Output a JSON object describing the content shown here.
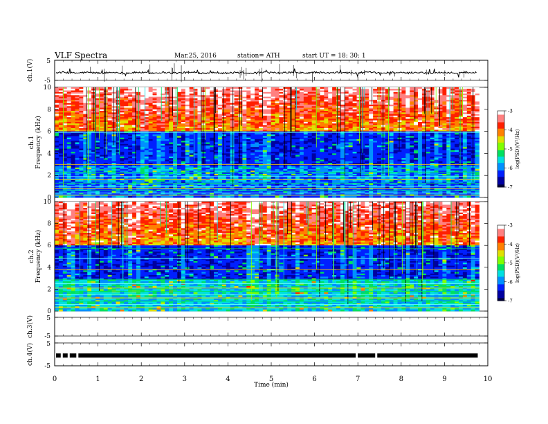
{
  "header": {
    "title": "VLF  Spectra",
    "date": "Mar.25, 2016",
    "station": "station= ATH",
    "start": "start  UT =   18: 30: 1"
  },
  "colors": {
    "colormap": [
      "#000040",
      "#0000a0",
      "#0020ff",
      "#0090ff",
      "#00e0e0",
      "#00e060",
      "#80ff00",
      "#e0e000",
      "#ff8000",
      "#ff2000",
      "#ff8080",
      "#ffffff"
    ],
    "trace": "#000000",
    "spectrogram_floor": "#000055"
  },
  "chart_data": [
    {
      "type": "line",
      "panel": "ch1-waveform",
      "ylabel": "ch.1(V)",
      "ylim": [
        -5,
        5
      ],
      "yticks": [
        "5",
        "-5"
      ],
      "baseline": -1.2,
      "xlim": [
        0,
        10
      ]
    },
    {
      "type": "heatmap",
      "panel": "ch1-spectrogram",
      "ylabel": "ch.1",
      "ylabel2": "Frequency  (kHz)",
      "ylim": [
        0,
        10
      ],
      "yticks": [
        "0",
        "2",
        "4",
        "6",
        "8",
        "10"
      ],
      "xlim": [
        0,
        9.8
      ],
      "colorbar": {
        "label": "log(PSD)(V²/Hz)",
        "range": [
          -7,
          -3
        ],
        "ticks": [
          "-3",
          "-4",
          "-5",
          "-6",
          "-7"
        ]
      }
    },
    {
      "type": "heatmap",
      "panel": "ch2-spectrogram",
      "ylabel": "ch.2",
      "ylabel2": "Frequency  (kHz)",
      "ylim": [
        0,
        10
      ],
      "yticks": [
        "0",
        "2",
        "4",
        "6",
        "8",
        "10"
      ],
      "xlim": [
        0,
        9.8
      ],
      "colorbar": {
        "label": "log(PSD)(V²/Hz)",
        "range": [
          -7,
          -3
        ],
        "ticks": [
          "-3",
          "-4",
          "-5",
          "-6",
          "-7"
        ]
      }
    },
    {
      "type": "line",
      "panel": "ch3-waveform",
      "ylabel": "ch.3(V)",
      "ylim": [
        -5,
        5
      ],
      "yticks": [
        "5",
        "-5"
      ],
      "baseline": 0,
      "xlim": [
        0,
        10
      ]
    },
    {
      "type": "line",
      "panel": "ch4-waveform",
      "ylabel": "ch.4(V)",
      "ylim": [
        -5,
        5
      ],
      "yticks": [
        "5",
        "-5"
      ],
      "baseline": -0.5,
      "xlim": [
        0,
        10
      ]
    }
  ],
  "xaxis": {
    "label": "Time  (min)",
    "ticks": [
      "0",
      "1",
      "2",
      "3",
      "4",
      "5",
      "6",
      "7",
      "8",
      "9",
      "10"
    ]
  }
}
